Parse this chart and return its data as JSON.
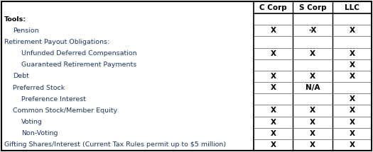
{
  "col_headers": [
    "C Corp",
    "S Corp",
    "LLC"
  ],
  "rows": [
    {
      "label": "Tools:",
      "indent": 0,
      "bold": true,
      "values": [
        "",
        "",
        ""
      ],
      "cell_border": false
    },
    {
      "label": "Pension",
      "indent": 1,
      "bold": false,
      "values": [
        "X",
        "-X",
        "X"
      ],
      "cell_border": true
    },
    {
      "label": "Retirement Payout Obligations:",
      "indent": 0,
      "bold": false,
      "values": [
        "",
        "",
        ""
      ],
      "cell_border": false
    },
    {
      "label": "Unfunded Deferred Compensation",
      "indent": 2,
      "bold": false,
      "values": [
        "X",
        "X",
        "X"
      ],
      "cell_border": true
    },
    {
      "label": "Guaranteed Retirement Payments",
      "indent": 2,
      "bold": false,
      "values": [
        "",
        "",
        "X"
      ],
      "cell_border": true
    },
    {
      "label": "Debt",
      "indent": 1,
      "bold": false,
      "values": [
        "X",
        "X",
        "X"
      ],
      "cell_border": true
    },
    {
      "label": "Preferred Stock",
      "indent": 1,
      "bold": false,
      "values": [
        "X",
        "N/A",
        ""
      ],
      "cell_border": true
    },
    {
      "label": "Preference Interest",
      "indent": 2,
      "bold": false,
      "values": [
        "",
        "",
        "X"
      ],
      "cell_border": true
    },
    {
      "label": "Common Stock/Member Equity",
      "indent": 1,
      "bold": false,
      "values": [
        "X",
        "X",
        "X"
      ],
      "cell_border": true
    },
    {
      "label": "Voting",
      "indent": 2,
      "bold": false,
      "values": [
        "X",
        "X",
        "X"
      ],
      "cell_border": true
    },
    {
      "label": "Non-Voting",
      "indent": 2,
      "bold": false,
      "values": [
        "X",
        "X",
        "X"
      ],
      "cell_border": true
    },
    {
      "label": "Gifting Shares/Interest (Current Tax Rules permit up to $5 million)",
      "indent": 0,
      "bold": false,
      "values": [
        "X",
        "X",
        "X"
      ],
      "cell_border": true
    }
  ],
  "border_color": "#000000",
  "grid_color": "#888888",
  "label_text_color": "#1F3864",
  "header_text_color": "#000000",
  "value_text_color": "#000000",
  "tools_bold_color": "#000000",
  "fig_width": 5.25,
  "fig_height": 2.15,
  "dpi": 100
}
